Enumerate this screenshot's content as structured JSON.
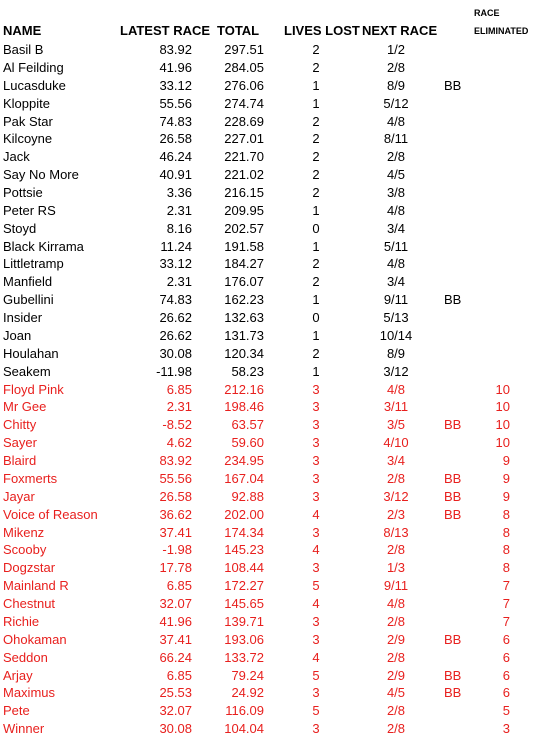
{
  "headers": {
    "name": "NAME",
    "latest": "LATEST RACE",
    "total": "TOTAL",
    "lives": "LIVES LOST",
    "next": "NEXT RACE",
    "race_line1": "RACE",
    "race_line2": "ELIMINATED"
  },
  "colors": {
    "active": "#000000",
    "eliminated": "#e8201e"
  },
  "rows": [
    {
      "name": "Basil B",
      "latest": "83.92",
      "total": "297.51",
      "lives": "2",
      "next": "1/2",
      "bb": "",
      "elim": "",
      "eliminated": false
    },
    {
      "name": "Al Feilding",
      "latest": "41.96",
      "total": "284.05",
      "lives": "2",
      "next": "2/8",
      "bb": "",
      "elim": "",
      "eliminated": false
    },
    {
      "name": "Lucasduke",
      "latest": "33.12",
      "total": "276.06",
      "lives": "1",
      "next": "8/9",
      "bb": "BB",
      "elim": "",
      "eliminated": false
    },
    {
      "name": "Kloppite",
      "latest": "55.56",
      "total": "274.74",
      "lives": "1",
      "next": "5/12",
      "bb": "",
      "elim": "",
      "eliminated": false
    },
    {
      "name": "Pak Star",
      "latest": "74.83",
      "total": "228.69",
      "lives": "2",
      "next": "4/8",
      "bb": "",
      "elim": "",
      "eliminated": false
    },
    {
      "name": "Kilcoyne",
      "latest": "26.58",
      "total": "227.01",
      "lives": "2",
      "next": "8/11",
      "bb": "",
      "elim": "",
      "eliminated": false
    },
    {
      "name": "Jack",
      "latest": "46.24",
      "total": "221.70",
      "lives": "2",
      "next": "2/8",
      "bb": "",
      "elim": "",
      "eliminated": false
    },
    {
      "name": "Say No More",
      "latest": "40.91",
      "total": "221.02",
      "lives": "2",
      "next": "4/5",
      "bb": "",
      "elim": "",
      "eliminated": false
    },
    {
      "name": "Pottsie",
      "latest": "3.36",
      "total": "216.15",
      "lives": "2",
      "next": "3/8",
      "bb": "",
      "elim": "",
      "eliminated": false
    },
    {
      "name": "Peter RS",
      "latest": "2.31",
      "total": "209.95",
      "lives": "1",
      "next": "4/8",
      "bb": "",
      "elim": "",
      "eliminated": false
    },
    {
      "name": "Stoyd",
      "latest": "8.16",
      "total": "202.57",
      "lives": "0",
      "next": "3/4",
      "bb": "",
      "elim": "",
      "eliminated": false
    },
    {
      "name": "Black Kirrama",
      "latest": "11.24",
      "total": "191.58",
      "lives": "1",
      "next": "5/11",
      "bb": "",
      "elim": "",
      "eliminated": false
    },
    {
      "name": "Littletramp",
      "latest": "33.12",
      "total": "184.27",
      "lives": "2",
      "next": "4/8",
      "bb": "",
      "elim": "",
      "eliminated": false
    },
    {
      "name": "Manfield",
      "latest": "2.31",
      "total": "176.07",
      "lives": "2",
      "next": "3/4",
      "bb": "",
      "elim": "",
      "eliminated": false
    },
    {
      "name": "Gubellini",
      "latest": "74.83",
      "total": "162.23",
      "lives": "1",
      "next": "9/11",
      "bb": "BB",
      "elim": "",
      "eliminated": false
    },
    {
      "name": "Insider",
      "latest": "26.62",
      "total": "132.63",
      "lives": "0",
      "next": "5/13",
      "bb": "",
      "elim": "",
      "eliminated": false
    },
    {
      "name": "Joan",
      "latest": "26.62",
      "total": "131.73",
      "lives": "1",
      "next": "10/14",
      "bb": "",
      "elim": "",
      "eliminated": false
    },
    {
      "name": "Houlahan",
      "latest": "30.08",
      "total": "120.34",
      "lives": "2",
      "next": "8/9",
      "bb": "",
      "elim": "",
      "eliminated": false
    },
    {
      "name": "Seakem",
      "latest": "-11.98",
      "total": "58.23",
      "lives": "1",
      "next": "3/12",
      "bb": "",
      "elim": "",
      "eliminated": false
    },
    {
      "name": "Floyd Pink",
      "latest": "6.85",
      "total": "212.16",
      "lives": "3",
      "next": "4/8",
      "bb": "",
      "elim": "10",
      "eliminated": true
    },
    {
      "name": "Mr Gee",
      "latest": "2.31",
      "total": "198.46",
      "lives": "3",
      "next": "3/11",
      "bb": "",
      "elim": "10",
      "eliminated": true
    },
    {
      "name": "Chitty",
      "latest": "-8.52",
      "total": "63.57",
      "lives": "3",
      "next": "3/5",
      "bb": "BB",
      "elim": "10",
      "eliminated": true
    },
    {
      "name": "Sayer",
      "latest": "4.62",
      "total": "59.60",
      "lives": "3",
      "next": "4/10",
      "bb": "",
      "elim": "10",
      "eliminated": true
    },
    {
      "name": "Blaird",
      "latest": "83.92",
      "total": "234.95",
      "lives": "3",
      "next": "3/4",
      "bb": "",
      "elim": "9",
      "eliminated": true
    },
    {
      "name": "Foxmerts",
      "latest": "55.56",
      "total": "167.04",
      "lives": "3",
      "next": "2/8",
      "bb": "BB",
      "elim": "9",
      "eliminated": true
    },
    {
      "name": "Jayar",
      "latest": "26.58",
      "total": "92.88",
      "lives": "3",
      "next": "3/12",
      "bb": "BB",
      "elim": "9",
      "eliminated": true
    },
    {
      "name": "Voice of Reason",
      "latest": "36.62",
      "total": "202.00",
      "lives": "4",
      "next": "2/3",
      "bb": "BB",
      "elim": "8",
      "eliminated": true
    },
    {
      "name": "Mikenz",
      "latest": "37.41",
      "total": "174.34",
      "lives": "3",
      "next": "8/13",
      "bb": "",
      "elim": "8",
      "eliminated": true
    },
    {
      "name": "Scooby",
      "latest": "-1.98",
      "total": "145.23",
      "lives": "4",
      "next": "2/8",
      "bb": "",
      "elim": "8",
      "eliminated": true
    },
    {
      "name": "Dogzstar",
      "latest": "17.78",
      "total": "108.44",
      "lives": "3",
      "next": "1/3",
      "bb": "",
      "elim": "8",
      "eliminated": true
    },
    {
      "name": "Mainland R",
      "latest": "6.85",
      "total": "172.27",
      "lives": "5",
      "next": "9/11",
      "bb": "",
      "elim": "7",
      "eliminated": true
    },
    {
      "name": "Chestnut",
      "latest": "32.07",
      "total": "145.65",
      "lives": "4",
      "next": "4/8",
      "bb": "",
      "elim": "7",
      "eliminated": true
    },
    {
      "name": "Richie",
      "latest": "41.96",
      "total": "139.71",
      "lives": "3",
      "next": "2/8",
      "bb": "",
      "elim": "7",
      "eliminated": true
    },
    {
      "name": "Ohokaman",
      "latest": "37.41",
      "total": "193.06",
      "lives": "3",
      "next": "2/9",
      "bb": "BB",
      "elim": "6",
      "eliminated": true
    },
    {
      "name": "Seddon",
      "latest": "66.24",
      "total": "133.72",
      "lives": "4",
      "next": "2/8",
      "bb": "",
      "elim": "6",
      "eliminated": true
    },
    {
      "name": "Arjay",
      "latest": "6.85",
      "total": "79.24",
      "lives": "5",
      "next": "2/9",
      "bb": "BB",
      "elim": "6",
      "eliminated": true
    },
    {
      "name": "Maximus",
      "latest": "25.53",
      "total": "24.92",
      "lives": "3",
      "next": "4/5",
      "bb": "BB",
      "elim": "6",
      "eliminated": true
    },
    {
      "name": "Pete",
      "latest": "32.07",
      "total": "116.09",
      "lives": "5",
      "next": "2/8",
      "bb": "",
      "elim": "5",
      "eliminated": true
    },
    {
      "name": "Winner",
      "latest": "30.08",
      "total": "104.04",
      "lives": "3",
      "next": "2/8",
      "bb": "",
      "elim": "3",
      "eliminated": true
    }
  ]
}
